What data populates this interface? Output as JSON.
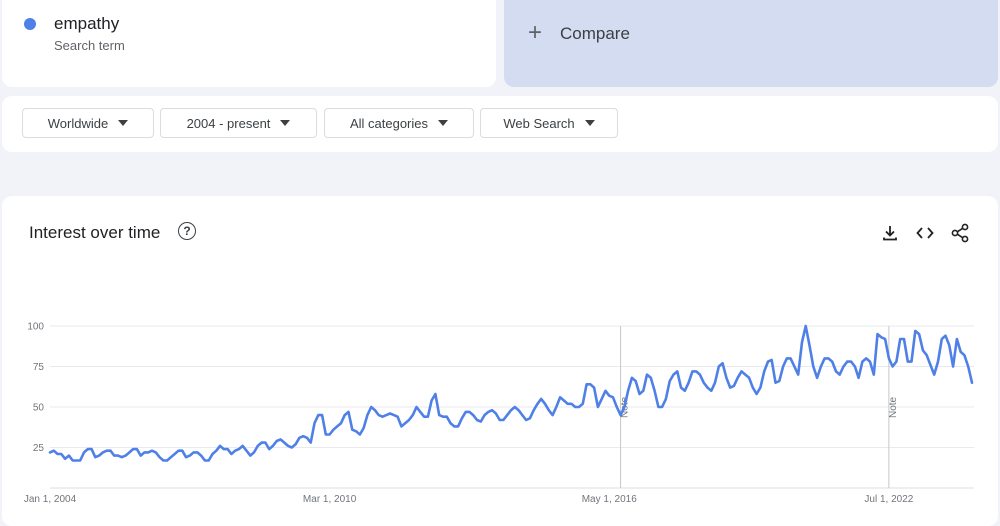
{
  "term": {
    "name": "empathy",
    "subtitle": "Search term",
    "dot_color": "#4f80e8"
  },
  "compare": {
    "label": "Compare",
    "icon": "plus-icon"
  },
  "filters": [
    {
      "label": "Worldwide"
    },
    {
      "label": "2004 - present"
    },
    {
      "label": "All categories"
    },
    {
      "label": "Web Search"
    }
  ],
  "chart_section": {
    "title": "Interest over time",
    "tools": [
      "download-icon",
      "embed-icon",
      "share-icon"
    ]
  },
  "chart_data": {
    "type": "line",
    "xlabel": "",
    "ylabel": "",
    "ylim": [
      0,
      100
    ],
    "yticks": [
      25,
      50,
      75,
      100
    ],
    "xticks": [
      {
        "label": "Jan 1, 2004",
        "month": 0
      },
      {
        "label": "Mar 1, 2010",
        "month": 74
      },
      {
        "label": "May 1, 2016",
        "month": 148
      },
      {
        "label": "Jul 1, 2022",
        "month": 222
      }
    ],
    "notes": [
      {
        "label": "Note",
        "month": 151
      },
      {
        "label": "Note",
        "month": 222
      }
    ],
    "line_color": "#4f80e8",
    "grid": true,
    "series": [
      {
        "values": [
          22,
          23,
          21,
          21,
          18,
          20,
          17,
          17,
          17,
          22,
          24,
          24,
          19,
          20,
          22,
          23,
          23,
          20,
          20,
          19,
          20,
          22,
          24,
          24,
          20,
          22,
          22,
          23,
          22,
          19,
          17,
          17,
          19,
          21,
          23,
          23,
          19,
          20,
          22,
          22,
          20,
          17,
          17,
          21,
          23,
          26,
          24,
          24,
          21,
          23,
          24,
          26,
          23,
          20,
          22,
          26,
          28,
          28,
          24,
          26,
          29,
          30,
          28,
          26,
          25,
          27,
          31,
          32,
          31,
          28,
          40,
          45,
          45,
          33,
          33,
          36,
          38,
          40,
          45,
          47,
          36,
          35,
          33,
          37,
          45,
          50,
          48,
          45,
          44,
          45,
          46,
          45,
          44,
          38,
          40,
          42,
          45,
          50,
          47,
          44,
          44,
          54,
          58,
          45,
          44,
          44,
          40,
          38,
          38,
          43,
          47,
          47,
          45,
          42,
          41,
          45,
          47,
          48,
          46,
          42,
          42,
          45,
          48,
          50,
          48,
          45,
          42,
          43,
          48,
          52,
          55,
          52,
          48,
          45,
          50,
          56,
          54,
          52,
          52,
          50,
          50,
          52,
          64,
          64,
          62,
          50,
          55,
          60,
          57,
          56,
          50,
          45,
          50,
          60,
          68,
          66,
          58,
          60,
          70,
          68,
          60,
          50,
          50,
          55,
          66,
          70,
          72,
          62,
          60,
          65,
          72,
          72,
          70,
          65,
          62,
          60,
          65,
          75,
          77,
          68,
          62,
          63,
          68,
          72,
          70,
          68,
          62,
          58,
          62,
          72,
          78,
          79,
          65,
          66,
          75,
          80,
          80,
          75,
          70,
          90,
          100,
          88,
          75,
          68,
          75,
          80,
          80,
          78,
          72,
          70,
          75,
          78,
          78,
          75,
          68,
          78,
          80,
          78,
          70,
          95,
          93,
          92,
          80,
          75,
          78,
          92,
          92,
          78,
          78,
          97,
          95,
          85,
          82,
          76,
          70,
          78,
          92,
          94,
          88,
          75,
          92,
          84,
          82,
          75,
          65
        ]
      }
    ]
  }
}
